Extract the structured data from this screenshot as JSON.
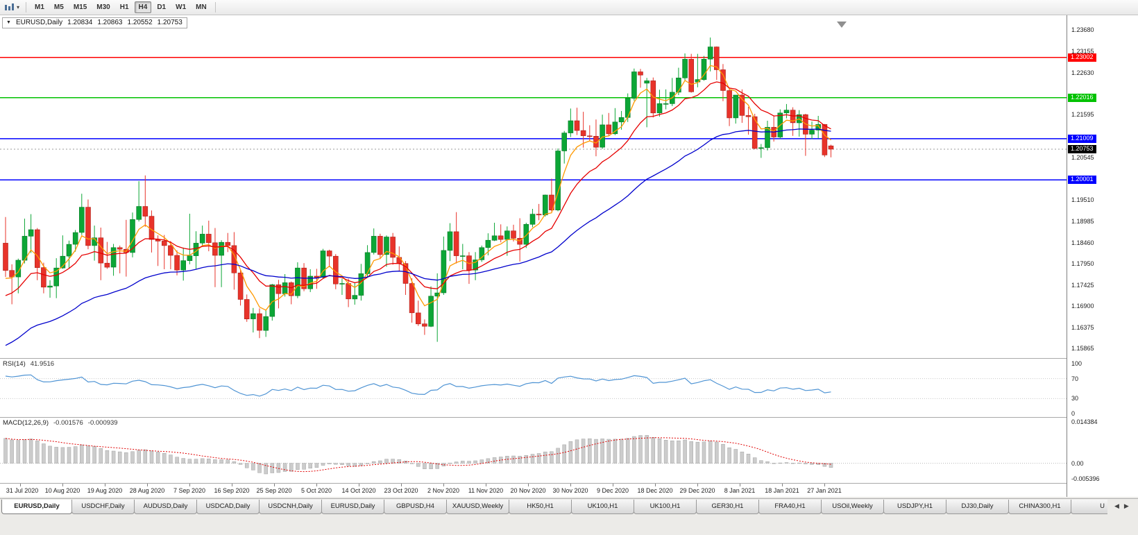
{
  "toolbar": {
    "caret_glyph": "▾",
    "timeframes": [
      {
        "label": "M1",
        "active": false
      },
      {
        "label": "M5",
        "active": false
      },
      {
        "label": "M15",
        "active": false
      },
      {
        "label": "M30",
        "active": false
      },
      {
        "label": "H1",
        "active": false
      },
      {
        "label": "H4",
        "active": true
      },
      {
        "label": "D1",
        "active": false
      },
      {
        "label": "W1",
        "active": false
      },
      {
        "label": "MN",
        "active": false
      }
    ]
  },
  "chart_header": {
    "collapse_glyph": "▼",
    "symbol": "EURUSD,Daily",
    "open": "1.20834",
    "high": "1.20863",
    "low": "1.20552",
    "close": "1.20753"
  },
  "price_axis": {
    "ticks": [
      "1.23680",
      "1.23155",
      "1.22630",
      "1.21595",
      "1.20545",
      "1.19510",
      "1.18985",
      "1.18460",
      "1.17950",
      "1.17425",
      "1.16900",
      "1.16375",
      "1.15865"
    ]
  },
  "rsi_panel": {
    "title": "RSI(14)",
    "value": "41.9516",
    "axis_ticks": [
      "100",
      "70",
      "30",
      "0"
    ],
    "axis_values": [
      100,
      70,
      30,
      0
    ],
    "levels": [
      70,
      30
    ],
    "line_color": "#4f94d4"
  },
  "macd_panel": {
    "title": "MACD(12,26,9)",
    "macd_value": "-0.001576",
    "signal_value": "-0.000939",
    "axis_ticks": [
      "0.014384",
      "0.00",
      "-0.005396"
    ],
    "axis_values": [
      0.014384,
      0,
      -0.005396
    ],
    "histogram_color": "#cccccc",
    "signal_color": "#e00000"
  },
  "tabs": {
    "left_arrow": "◀",
    "right_arrow": "▶",
    "items": [
      {
        "label": "EURUSD,Daily",
        "active": true
      },
      {
        "label": "USDCHF,Daily",
        "active": false
      },
      {
        "label": "AUDUSD,Daily",
        "active": false
      },
      {
        "label": "USDCAD,Daily",
        "active": false
      },
      {
        "label": "USDCNH,Daily",
        "active": false
      },
      {
        "label": "EURUSD,Daily",
        "active": false
      },
      {
        "label": "GBPUSD,H4",
        "active": false
      },
      {
        "label": "XAUUSD,Weekly",
        "active": false
      },
      {
        "label": "HK50,H1",
        "active": false
      },
      {
        "label": "UK100,H1",
        "active": false
      },
      {
        "label": "UK100,H1",
        "active": false
      },
      {
        "label": "GER30,H1",
        "active": false
      },
      {
        "label": "FRA40,H1",
        "active": false
      },
      {
        "label": "USOil,Weekly",
        "active": false
      },
      {
        "label": "USDJPY,H1",
        "active": false
      },
      {
        "label": "DJ30,Daily",
        "active": false
      },
      {
        "label": "CHINA300,H1",
        "active": false
      },
      {
        "label": "U",
        "active": false
      }
    ]
  },
  "chart_data": {
    "type": "candlestick",
    "symbol": "EURUSD",
    "timeframe": "Daily",
    "ohlc_current": {
      "open": 1.20834,
      "high": 1.20863,
      "low": 1.20552,
      "close": 1.20753
    },
    "price_range": {
      "min": 1.157,
      "max": 1.239
    },
    "x_labels": [
      "31 Jul 2020",
      "10 Aug 2020",
      "19 Aug 2020",
      "28 Aug 2020",
      "7 Sep 2020",
      "16 Sep 2020",
      "25 Sep 2020",
      "5 Oct 2020",
      "14 Oct 2020",
      "23 Oct 2020",
      "2 Nov 2020",
      "11 Nov 2020",
      "20 Nov 2020",
      "30 Nov 2020",
      "9 Dec 2020",
      "18 Dec 2020",
      "29 Dec 2020",
      "8 Jan 2021",
      "18 Jan 2021",
      "27 Jan 2021"
    ],
    "hlines": [
      {
        "value": 1.23002,
        "label": "1.23002",
        "color": "#ff0000"
      },
      {
        "value": 1.22016,
        "label": "1.22016",
        "color": "#00c200"
      },
      {
        "value": 1.21009,
        "label": "1.21009",
        "color": "#0000ff"
      },
      {
        "value": 1.20001,
        "label": "1.20001",
        "color": "#0000ff"
      }
    ],
    "current_price": {
      "value": 1.20753,
      "label": "1.20753"
    },
    "moving_averages": [
      {
        "name": "fast-ema",
        "period": 5,
        "color": "#ff9900"
      },
      {
        "name": "medium-ema",
        "period": 13,
        "color": "#e60000"
      },
      {
        "name": "slow-ema",
        "period": 40,
        "color": "#0000cc"
      }
    ],
    "indicators": {
      "rsi": {
        "period": 14,
        "current": 41.9516
      },
      "macd": {
        "fast": 12,
        "slow": 26,
        "signal": 9,
        "current_macd": -0.001576,
        "current_signal": -0.000939,
        "axis_max": 0.014384,
        "axis_min": -0.005396
      }
    },
    "candles": [
      [
        1.1845,
        1.1909,
        1.1762,
        1.1778
      ],
      [
        1.1778,
        1.1793,
        1.1695,
        1.1762
      ],
      [
        1.1762,
        1.1807,
        1.1722,
        1.1803
      ],
      [
        1.1803,
        1.1905,
        1.1795,
        1.1862
      ],
      [
        1.1862,
        1.1916,
        1.1821,
        1.1878
      ],
      [
        1.1878,
        1.1882,
        1.1754,
        1.1785
      ],
      [
        1.1785,
        1.1797,
        1.1722,
        1.1737
      ],
      [
        1.1737,
        1.1754,
        1.1711,
        1.174
      ],
      [
        1.174,
        1.1808,
        1.171,
        1.1784
      ],
      [
        1.1784,
        1.1864,
        1.1782,
        1.1813
      ],
      [
        1.1813,
        1.1851,
        1.1783,
        1.1842
      ],
      [
        1.1842,
        1.1877,
        1.1824,
        1.1871
      ],
      [
        1.1871,
        1.1966,
        1.1865,
        1.1933
      ],
      [
        1.1933,
        1.1952,
        1.183,
        1.1839
      ],
      [
        1.1839,
        1.1888,
        1.1802,
        1.1858
      ],
      [
        1.1858,
        1.1883,
        1.1754,
        1.1796
      ],
      [
        1.1796,
        1.1848,
        1.1782,
        1.1786
      ],
      [
        1.1786,
        1.1843,
        1.1765,
        1.1834
      ],
      [
        1.1834,
        1.1839,
        1.1771,
        1.183
      ],
      [
        1.183,
        1.1902,
        1.1763,
        1.1822
      ],
      [
        1.1822,
        1.192,
        1.181,
        1.1903
      ],
      [
        1.1903,
        1.1997,
        1.1898,
        1.1935
      ],
      [
        1.1935,
        1.2011,
        1.1885,
        1.1911
      ],
      [
        1.1911,
        1.1925,
        1.1822,
        1.1854
      ],
      [
        1.1854,
        1.1864,
        1.1789,
        1.185
      ],
      [
        1.185,
        1.1865,
        1.1781,
        1.1839
      ],
      [
        1.1839,
        1.185,
        1.1781,
        1.1815
      ],
      [
        1.1815,
        1.1827,
        1.1766,
        1.1779
      ],
      [
        1.1779,
        1.1834,
        1.1753,
        1.1802
      ],
      [
        1.1802,
        1.1917,
        1.1793,
        1.1814
      ],
      [
        1.1814,
        1.1874,
        1.1782,
        1.1845
      ],
      [
        1.1845,
        1.1888,
        1.1839,
        1.1867
      ],
      [
        1.1867,
        1.19,
        1.1825,
        1.1846
      ],
      [
        1.1846,
        1.1882,
        1.1737,
        1.1815
      ],
      [
        1.1815,
        1.1852,
        1.1737,
        1.1847
      ],
      [
        1.1847,
        1.187,
        1.1823,
        1.1839
      ],
      [
        1.1839,
        1.1872,
        1.1731,
        1.1772
      ],
      [
        1.1772,
        1.178,
        1.1692,
        1.1707
      ],
      [
        1.1707,
        1.1719,
        1.1652,
        1.1659
      ],
      [
        1.1659,
        1.1686,
        1.1626,
        1.1672
      ],
      [
        1.1672,
        1.1685,
        1.1612,
        1.1631
      ],
      [
        1.1631,
        1.1681,
        1.1615,
        1.1665
      ],
      [
        1.1665,
        1.1745,
        1.1655,
        1.1743
      ],
      [
        1.1743,
        1.1755,
        1.1685,
        1.1721
      ],
      [
        1.1721,
        1.1769,
        1.1714,
        1.1748
      ],
      [
        1.1748,
        1.1751,
        1.1695,
        1.1716
      ],
      [
        1.1716,
        1.1798,
        1.171,
        1.1784
      ],
      [
        1.1784,
        1.1796,
        1.1727,
        1.1733
      ],
      [
        1.1733,
        1.1781,
        1.1725,
        1.1764
      ],
      [
        1.1764,
        1.1782,
        1.1733,
        1.1761
      ],
      [
        1.1761,
        1.1831,
        1.1758,
        1.1826
      ],
      [
        1.1826,
        1.1829,
        1.1786,
        1.1813
      ],
      [
        1.1813,
        1.1818,
        1.1732,
        1.1745
      ],
      [
        1.1745,
        1.1758,
        1.1718,
        1.1746
      ],
      [
        1.1746,
        1.1758,
        1.1688,
        1.1708
      ],
      [
        1.1708,
        1.1747,
        1.1694,
        1.1717
      ],
      [
        1.1717,
        1.1794,
        1.1704,
        1.177
      ],
      [
        1.177,
        1.184,
        1.1761,
        1.1822
      ],
      [
        1.1822,
        1.1881,
        1.1817,
        1.1862
      ],
      [
        1.1862,
        1.1868,
        1.1806,
        1.1817
      ],
      [
        1.1817,
        1.1864,
        1.1787,
        1.186
      ],
      [
        1.186,
        1.187,
        1.1792,
        1.181
      ],
      [
        1.181,
        1.1837,
        1.1776,
        1.1795
      ],
      [
        1.1795,
        1.1801,
        1.1718,
        1.1746
      ],
      [
        1.1746,
        1.1759,
        1.165,
        1.1674
      ],
      [
        1.1674,
        1.1704,
        1.1642,
        1.1647
      ],
      [
        1.1647,
        1.1658,
        1.162,
        1.1641
      ],
      [
        1.1641,
        1.1739,
        1.1639,
        1.1715
      ],
      [
        1.1715,
        1.1771,
        1.1603,
        1.1723
      ],
      [
        1.1723,
        1.1861,
        1.1718,
        1.1827
      ],
      [
        1.1827,
        1.1894,
        1.1801,
        1.1873
      ],
      [
        1.1873,
        1.1921,
        1.1795,
        1.1814
      ],
      [
        1.1814,
        1.1843,
        1.1781,
        1.1814
      ],
      [
        1.1814,
        1.1823,
        1.1745,
        1.1779
      ],
      [
        1.1779,
        1.1823,
        1.1754,
        1.1804
      ],
      [
        1.1804,
        1.1839,
        1.1799,
        1.1834
      ],
      [
        1.1834,
        1.1869,
        1.1815,
        1.1852
      ],
      [
        1.1852,
        1.1895,
        1.185,
        1.1863
      ],
      [
        1.1863,
        1.1891,
        1.1847,
        1.1854
      ],
      [
        1.1854,
        1.1886,
        1.1814,
        1.1875
      ],
      [
        1.1875,
        1.189,
        1.1849,
        1.1857
      ],
      [
        1.1857,
        1.1906,
        1.18,
        1.1842
      ],
      [
        1.1842,
        1.1895,
        1.1833,
        1.1891
      ],
      [
        1.1891,
        1.1929,
        1.1884,
        1.1916
      ],
      [
        1.1916,
        1.1941,
        1.1901,
        1.1914
      ],
      [
        1.1914,
        1.1964,
        1.191,
        1.1963
      ],
      [
        1.1963,
        1.2003,
        1.1923,
        1.1926
      ],
      [
        1.1926,
        1.2077,
        1.1923,
        1.2071
      ],
      [
        1.2071,
        1.212,
        1.204,
        1.2115
      ],
      [
        1.2115,
        1.2175,
        1.2105,
        1.2145
      ],
      [
        1.2145,
        1.2177,
        1.211,
        1.2121
      ],
      [
        1.2121,
        1.2167,
        1.2079,
        1.2108
      ],
      [
        1.2108,
        1.2134,
        1.2095,
        1.2107
      ],
      [
        1.2107,
        1.2148,
        1.2058,
        1.208
      ],
      [
        1.208,
        1.216,
        1.2076,
        1.2135
      ],
      [
        1.2135,
        1.2164,
        1.2107,
        1.2113
      ],
      [
        1.2113,
        1.2176,
        1.211,
        1.2142
      ],
      [
        1.2142,
        1.2169,
        1.2123,
        1.2153
      ],
      [
        1.2153,
        1.2212,
        1.2142,
        1.22
      ],
      [
        1.22,
        1.2273,
        1.2194,
        1.2265
      ],
      [
        1.2265,
        1.2272,
        1.2226,
        1.2257
      ],
      [
        1.2237,
        1.225,
        1.2129,
        1.2243
      ],
      [
        1.2243,
        1.2251,
        1.2153,
        1.2164
      ],
      [
        1.2164,
        1.2221,
        1.2155,
        1.2187
      ],
      [
        1.2187,
        1.2222,
        1.2173,
        1.2187
      ],
      [
        1.2187,
        1.225,
        1.2181,
        1.2215
      ],
      [
        1.2215,
        1.2275,
        1.2208,
        1.225
      ],
      [
        1.225,
        1.231,
        1.2243,
        1.2296
      ],
      [
        1.2296,
        1.2309,
        1.2214,
        1.2216
      ],
      [
        1.224,
        1.2309,
        1.2227,
        1.2246
      ],
      [
        1.2246,
        1.2304,
        1.2243,
        1.2296
      ],
      [
        1.2296,
        1.2349,
        1.2266,
        1.2326
      ],
      [
        1.2326,
        1.2327,
        1.2245,
        1.227
      ],
      [
        1.227,
        1.2284,
        1.2193,
        1.2219
      ],
      [
        1.2219,
        1.2223,
        1.2132,
        1.2152
      ],
      [
        1.2152,
        1.2208,
        1.2138,
        1.2208
      ],
      [
        1.2208,
        1.2222,
        1.214,
        1.2158
      ],
      [
        1.2158,
        1.2179,
        1.2111,
        1.2155
      ],
      [
        1.2155,
        1.2162,
        1.2075,
        1.2077
      ],
      [
        1.2077,
        1.2088,
        1.2054,
        1.2079
      ],
      [
        1.2079,
        1.2145,
        1.2072,
        1.2129
      ],
      [
        1.2129,
        1.2158,
        1.2094,
        1.2105
      ],
      [
        1.2105,
        1.2173,
        1.2101,
        1.2164
      ],
      [
        1.2164,
        1.2186,
        1.2151,
        1.2171
      ],
      [
        1.2171,
        1.2178,
        1.2108,
        1.214
      ],
      [
        1.214,
        1.2171,
        1.2106,
        1.216
      ],
      [
        1.216,
        1.2162,
        1.2059,
        1.2112
      ],
      [
        1.2112,
        1.2143,
        1.21,
        1.2122
      ],
      [
        1.2122,
        1.2157,
        1.2102,
        1.2136
      ],
      [
        1.2136,
        1.2137,
        1.2056,
        1.2061
      ],
      [
        1.20834,
        1.20863,
        1.20552,
        1.20753
      ]
    ]
  }
}
